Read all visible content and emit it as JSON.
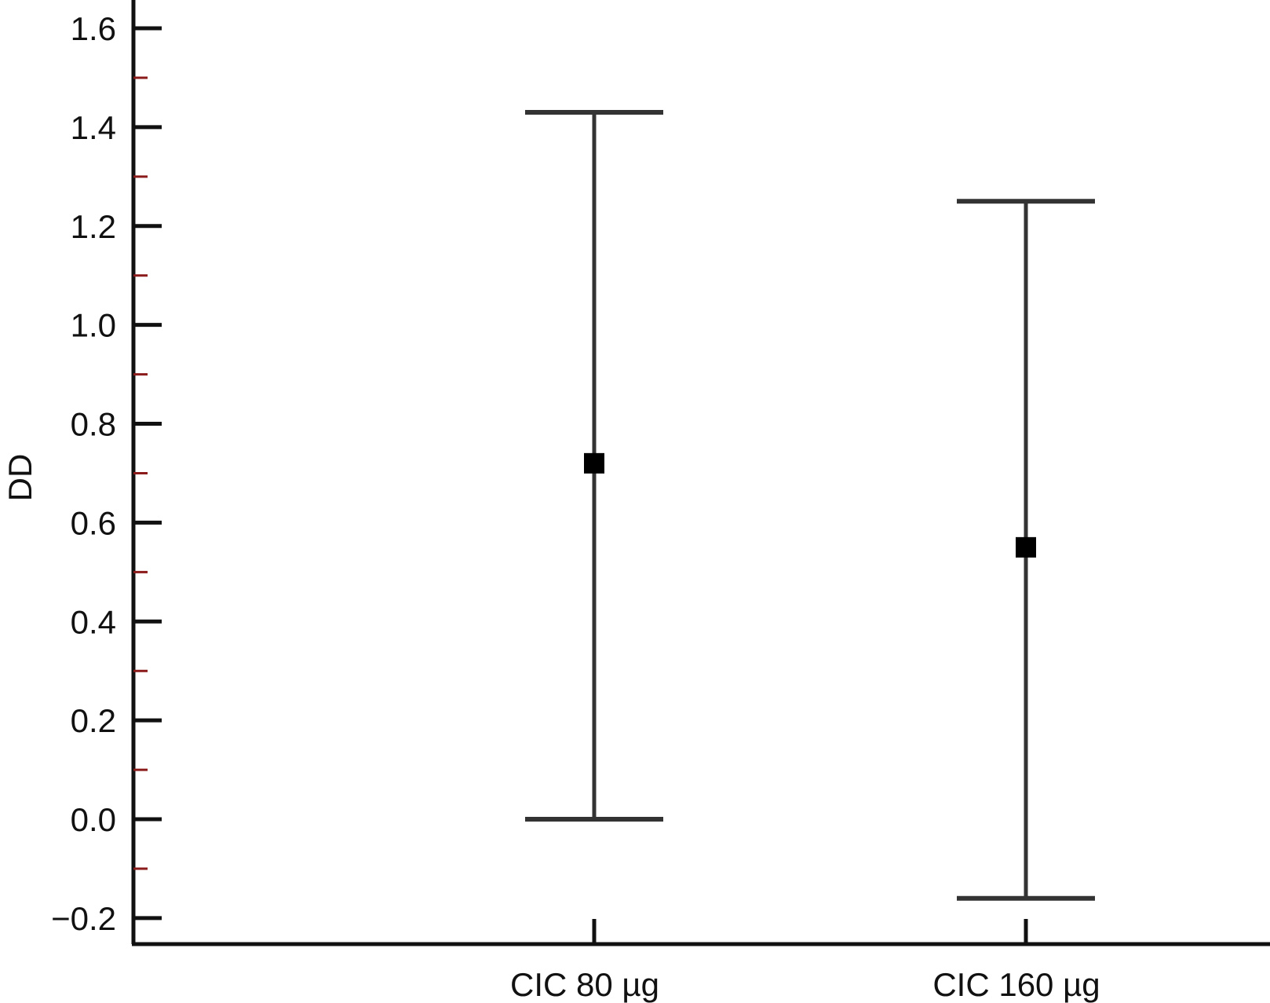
{
  "chart_data": {
    "type": "errorbar",
    "xlabel": "",
    "ylabel": "DD",
    "ylim": [
      -0.25,
      1.65
    ],
    "y_ticks": [
      -0.2,
      0.0,
      0.2,
      0.4,
      0.6,
      0.8,
      1.0,
      1.2,
      1.4,
      1.6
    ],
    "y_tick_labels": [
      "−0.2",
      "0.0",
      "0.2",
      "0.4",
      "0.6",
      "0.8",
      "1.0",
      "1.2",
      "1.4",
      "1.6"
    ],
    "y_minor_ticks": [
      -0.1,
      0.1,
      0.3,
      0.5,
      0.7,
      0.9,
      1.1,
      1.3,
      1.5
    ],
    "categories": [
      "CIC 80 µg",
      "CIC 160 µg"
    ],
    "points": [
      {
        "category": "CIC 80 µg",
        "mean": 0.72,
        "lower": 0.0,
        "upper": 1.43
      },
      {
        "category": "CIC 160 µg",
        "mean": 0.55,
        "lower": -0.16,
        "upper": 1.25
      }
    ],
    "grid": false,
    "colors": {
      "axis": "#111111",
      "minor_tick": "#8b1a1a",
      "error_bar": "#333333",
      "marker": "#000000"
    }
  }
}
